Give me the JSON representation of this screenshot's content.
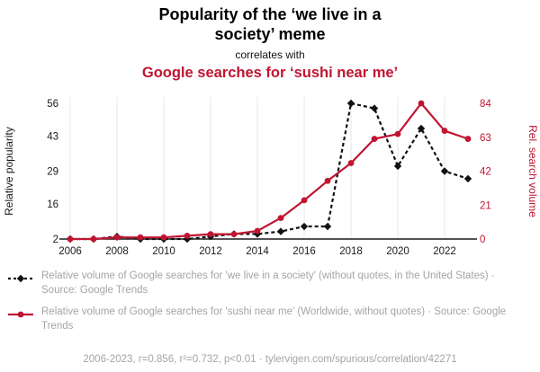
{
  "header": {
    "title_black": "Popularity of the ‘we live in a society’ meme",
    "connector": "correlates with",
    "title_red": "Google searches for ‘sushi near me’"
  },
  "colors": {
    "accent_red": "#c01531",
    "line_black": "#111111",
    "legend_gray": "#a4a4a4",
    "grid": "#e7e7e7",
    "axis": "#1a1a1a"
  },
  "legend": [
    {
      "label": "Relative volume of Google searches for 'we live in a society' (without quotes, in the United States) · Source: Google Trends"
    },
    {
      "label": "Relative volume of Google searches for 'sushi near me' (Worldwide, without quotes) · Source: Google Trends"
    }
  ],
  "footer": {
    "text": "2006-2023, r=0.856, r²=0.732, p<0.01 · tylervigen.com/spurious/correlation/42271"
  },
  "chart_data": {
    "type": "line",
    "x": [
      2006,
      2007,
      2008,
      2009,
      2010,
      2011,
      2012,
      2013,
      2014,
      2015,
      2016,
      2017,
      2018,
      2019,
      2020,
      2021,
      2022,
      2023
    ],
    "series": [
      {
        "name": "we live in a society",
        "axis": "left",
        "color": "#111111",
        "style": "dashed",
        "marker": "diamond",
        "values": [
          2,
          2,
          3,
          2,
          2,
          2,
          3,
          4,
          4,
          5,
          7,
          7,
          56,
          54,
          31,
          46,
          29,
          26
        ]
      },
      {
        "name": "sushi near me",
        "axis": "right",
        "color": "#c01531",
        "style": "solid",
        "marker": "circle",
        "values": [
          0,
          0,
          1,
          1,
          1,
          2,
          3,
          3,
          5,
          13,
          24,
          36,
          47,
          62,
          65,
          84,
          67,
          62
        ]
      }
    ],
    "left_axis": {
      "label": "Relative popularity",
      "ticks": [
        2,
        16,
        29,
        43,
        56
      ],
      "range": [
        2,
        56
      ]
    },
    "right_axis": {
      "label": "Rel. search volume",
      "ticks": [
        0,
        21,
        42,
        63,
        84
      ],
      "range": [
        0,
        84
      ]
    },
    "x_ticks": [
      2006,
      2008,
      2010,
      2012,
      2014,
      2016,
      2018,
      2020,
      2022
    ],
    "grid": "vertical",
    "legend_position": "bottom"
  }
}
